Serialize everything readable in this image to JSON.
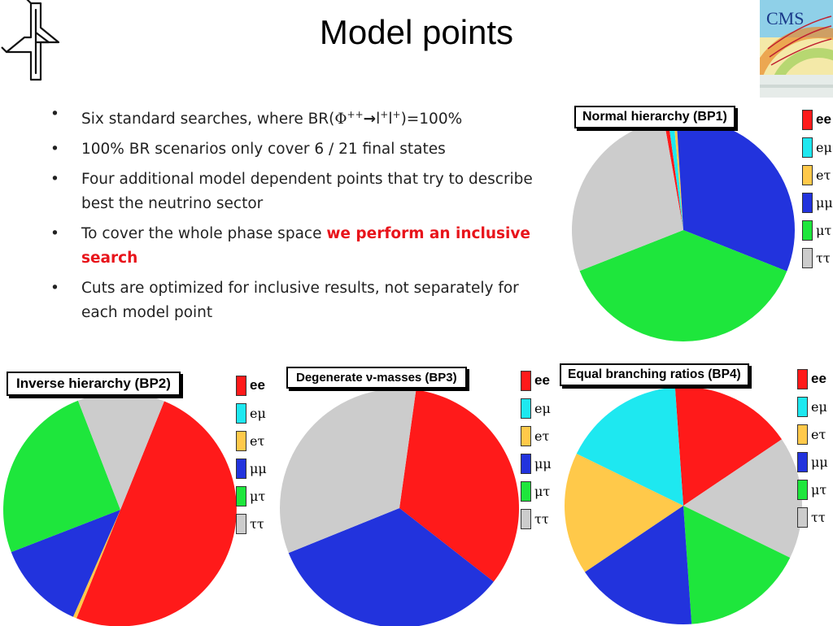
{
  "slide": {
    "title": "Model points",
    "bullets": [
      {
        "type": "br"
      },
      {
        "text": "100% BR scenarios only cover 6 / 21 final states"
      },
      {
        "text": "Four additional model dependent points that try to describe best the neutrino sector"
      },
      {
        "text": "To cover the whole phase space ",
        "emphasis": "we perform an inclusive search"
      },
      {
        "text": "Cuts are optimized for inclusive results, not separately for each model point"
      }
    ],
    "br_bullet": {
      "prefix": "Six standard searches, where BR(",
      "phi": "Φ",
      "sup1": "++",
      "arrow": "→",
      "l1": "l",
      "sup2": "+",
      "l2": "l",
      "sup3": "+",
      "suffix": ")=100%"
    },
    "bullet_char": "•",
    "logo_text": "CMS",
    "emphasis_color": "#e8141b"
  },
  "legend": [
    {
      "label": "ee",
      "color": "#ff1a1a"
    },
    {
      "label": "eμ",
      "color": "#1ee8f0"
    },
    {
      "label": "eτ",
      "color": "#ffc94a"
    },
    {
      "label": "μμ",
      "color": "#2233dd"
    },
    {
      "label": "μτ",
      "color": "#1ee63c"
    },
    {
      "label": "ττ",
      "color": "#cccccc"
    }
  ],
  "chart_data": [
    {
      "type": "pie",
      "title": "Normal hierarchy (BP1)",
      "series": [
        {
          "values": [
            0.6,
            0.8,
            0.4,
            32,
            38,
            28.2
          ]
        }
      ],
      "categories": [
        "ee",
        "eμ",
        "eτ",
        "μμ",
        "μτ",
        "ττ"
      ]
    },
    {
      "type": "pie",
      "title": "Inverse hierarchy (BP2)",
      "series": [
        {
          "values": [
            50,
            0,
            0.5,
            12.5,
            25,
            12
          ]
        }
      ],
      "categories": [
        "ee",
        "eμ",
        "eτ",
        "μμ",
        "μτ",
        "ττ"
      ]
    },
    {
      "type": "pie",
      "title": "Degenerate ν-masses (BP3)",
      "series": [
        {
          "values": [
            33.33,
            0,
            0,
            33.33,
            0,
            33.34
          ]
        }
      ],
      "categories": [
        "ee",
        "eμ",
        "eτ",
        "μμ",
        "μτ",
        "ττ"
      ]
    },
    {
      "type": "pie",
      "title": "Equal branching ratios (BP4)",
      "series": [
        {
          "values": [
            16.67,
            16.67,
            16.67,
            16.67,
            16.67,
            16.67
          ]
        }
      ],
      "categories": [
        "ee",
        "eμ",
        "eτ",
        "μμ",
        "μτ",
        "ττ"
      ],
      "slice_order": [
        "ee",
        "ττ",
        "μτ",
        "μμ",
        "eτ",
        "eμ"
      ]
    }
  ]
}
